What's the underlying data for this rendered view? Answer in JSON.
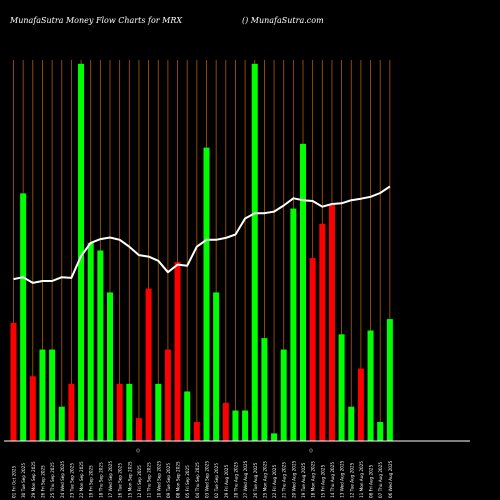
{
  "header": {
    "left": "MunafaSutra  Money Flow  Charts for MRX",
    "right": "() MunafaSutra.com"
  },
  "colors": {
    "background": "#000000",
    "grid": "#b35900",
    "up": "#00ff00",
    "down": "#ff0000",
    "line": "#ffffff",
    "axis": "#ffffff"
  },
  "chart_data": {
    "type": "bar",
    "grid": true,
    "bars": [
      {
        "label": "01 Fri Oct 2025",
        "value": 31,
        "dir": "down"
      },
      {
        "label": "30 Tue Sep 2025",
        "value": 65,
        "dir": "up"
      },
      {
        "label": "29 Mon Sep 2025",
        "value": 17,
        "dir": "down"
      },
      {
        "label": "26 Fri Sep 2025",
        "value": 24,
        "dir": "up"
      },
      {
        "label": "25 Thu Sep 2025",
        "value": 24,
        "dir": "up"
      },
      {
        "label": "24 Wed Sep 2025",
        "value": 9,
        "dir": "up"
      },
      {
        "label": "23 Tue Sep 2025",
        "value": 15,
        "dir": "down"
      },
      {
        "label": "22 Mon Sep 2025",
        "value": 99,
        "dir": "up"
      },
      {
        "label": "19 Fri Sep 2025",
        "value": 52,
        "dir": "up"
      },
      {
        "label": "18 Thu Sep 2025",
        "value": 50,
        "dir": "up"
      },
      {
        "label": "17 Wed Sep 2025",
        "value": 39,
        "dir": "up"
      },
      {
        "label": "16 Tue Sep 2025",
        "value": 15,
        "dir": "down"
      },
      {
        "label": "15 Mon Sep 2025",
        "value": 15,
        "dir": "up"
      },
      {
        "label": "12 Fri Sep 2025",
        "value": 6,
        "dir": "down"
      },
      {
        "label": "11 Thu Sep 2025",
        "value": 40,
        "dir": "down"
      },
      {
        "label": "10 Wed Sep 2025",
        "value": 15,
        "dir": "up"
      },
      {
        "label": "09 Tue Sep 2025",
        "value": 24,
        "dir": "down"
      },
      {
        "label": "08 Mon Sep 2025",
        "value": 47,
        "dir": "down"
      },
      {
        "label": "05 Fri Sep 2025",
        "value": 13,
        "dir": "up"
      },
      {
        "label": "04 Thu Sep 2025",
        "value": 5,
        "dir": "down"
      },
      {
        "label": "03 Wed Sep 2025",
        "value": 77,
        "dir": "up"
      },
      {
        "label": "02 Tue Sep 2025",
        "value": 39,
        "dir": "up"
      },
      {
        "label": "29 Fri Aug 2025",
        "value": 10,
        "dir": "down"
      },
      {
        "label": "28 Thu Aug 2025",
        "value": 8,
        "dir": "up"
      },
      {
        "label": "27 Wed Aug 2025",
        "value": 8,
        "dir": "up"
      },
      {
        "label": "26 Tue Aug 2025",
        "value": 99,
        "dir": "up"
      },
      {
        "label": "25 Mon Aug 2025",
        "value": 27,
        "dir": "up"
      },
      {
        "label": "22 Fri Aug 2025",
        "value": 2,
        "dir": "up"
      },
      {
        "label": "21 Thu Aug 2025",
        "value": 24,
        "dir": "up"
      },
      {
        "label": "20 Wed Aug 2025",
        "value": 61,
        "dir": "up"
      },
      {
        "label": "19 Tue Aug 2025",
        "value": 78,
        "dir": "up"
      },
      {
        "label": "18 Mon Aug 2025",
        "value": 48,
        "dir": "down"
      },
      {
        "label": "15 Fri Aug 2025",
        "value": 57,
        "dir": "down"
      },
      {
        "label": "14 Thu Aug 2025",
        "value": 62,
        "dir": "down"
      },
      {
        "label": "13 Wed Aug 2025",
        "value": 28,
        "dir": "up"
      },
      {
        "label": "12 Tue Aug 2025",
        "value": 9,
        "dir": "up"
      },
      {
        "label": "11 Mon Aug 2025",
        "value": 19,
        "dir": "down"
      },
      {
        "label": "08 Fri Aug 2025",
        "value": 29,
        "dir": "up"
      },
      {
        "label": "07 Thu Aug 2025",
        "value": 5,
        "dir": "up"
      },
      {
        "label": "06 Wed Aug 2025",
        "value": 32,
        "dir": "up"
      }
    ],
    "line": [
      42.5,
      43,
      41.5,
      42,
      42,
      43,
      42.8,
      48.5,
      52,
      53,
      53.4,
      52.8,
      51,
      48.8,
      48.4,
      47.3,
      44.3,
      46.3,
      46,
      51,
      52.8,
      52.8,
      53.3,
      54.2,
      58.4,
      59.8,
      59.8,
      60.2,
      61.8,
      63.7,
      63.2,
      63,
      61.5,
      62.2,
      62.4,
      63.2,
      63.6,
      64.1,
      65.1,
      66.8
    ],
    "ylim": [
      0,
      100
    ],
    "axis_marks": [
      "()",
      "()"
    ]
  }
}
